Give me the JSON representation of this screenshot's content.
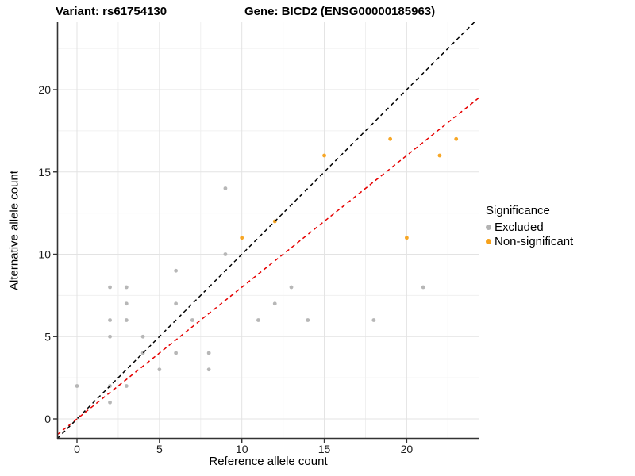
{
  "titles": {
    "variant": "Variant: rs61754130",
    "gene": "Gene: BICD2 (ENSG00000185963)"
  },
  "axes": {
    "x_label": "Reference allele count",
    "y_label": "Alternative allele count",
    "x_ticks": [
      0,
      5,
      10,
      15,
      20
    ],
    "y_ticks": [
      0,
      5,
      10,
      15,
      20
    ]
  },
  "legend": {
    "title": "Significance",
    "items": [
      {
        "label": "Excluded",
        "color": "#b3b3b3"
      },
      {
        "label": "Non-significant",
        "color": "#f7a21b"
      }
    ]
  },
  "colors": {
    "excluded_point": "#b3b3b3",
    "non_significant_point": "#f7a21b",
    "identity_line": "#000000",
    "expected_line": "#e50000",
    "grid_major": "#e3e3e3",
    "grid_minor": "#f0f0f0",
    "axis_line": "#333333"
  },
  "chart_data": {
    "type": "scatter",
    "title": "Variant: rs61754130 — Gene: BICD2 (ENSG00000185963)",
    "xlabel": "Reference allele count",
    "ylabel": "Alternative allele count",
    "xlim": [
      -1.2,
      24.4
    ],
    "ylim": [
      -1.2,
      24.1
    ],
    "grid": "on",
    "legend_position": "right",
    "series": [
      {
        "name": "Excluded",
        "color": "#b3b3b3",
        "points": [
          [
            0,
            2
          ],
          [
            2,
            1
          ],
          [
            2,
            2
          ],
          [
            2,
            5
          ],
          [
            2,
            6
          ],
          [
            2,
            8
          ],
          [
            3,
            2
          ],
          [
            3,
            6
          ],
          [
            3,
            7
          ],
          [
            3,
            8
          ],
          [
            4,
            4
          ],
          [
            4,
            5
          ],
          [
            5,
            3
          ],
          [
            6,
            4
          ],
          [
            6,
            7
          ],
          [
            6,
            9
          ],
          [
            7,
            6
          ],
          [
            8,
            3
          ],
          [
            8,
            4
          ],
          [
            9,
            10
          ],
          [
            9,
            14
          ],
          [
            11,
            6
          ],
          [
            12,
            7
          ],
          [
            13,
            8
          ],
          [
            14,
            6
          ],
          [
            18,
            6
          ],
          [
            21,
            8
          ]
        ]
      },
      {
        "name": "Non-significant",
        "color": "#f7a21b",
        "points": [
          [
            10,
            11
          ],
          [
            12,
            12
          ],
          [
            15,
            16
          ],
          [
            19,
            17
          ],
          [
            20,
            11
          ],
          [
            22,
            16
          ],
          [
            23,
            17
          ]
        ]
      }
    ],
    "lines": [
      {
        "name": "identity",
        "slope": 1.0,
        "intercept": 0,
        "color": "#000000",
        "style": "dashed"
      },
      {
        "name": "expected-ratio",
        "slope": 0.8,
        "intercept": 0,
        "color": "#e50000",
        "style": "dashed"
      }
    ]
  }
}
